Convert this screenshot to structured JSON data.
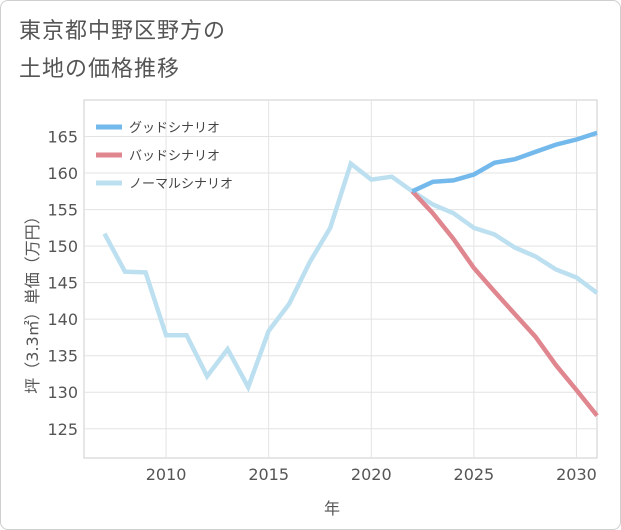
{
  "title": {
    "line1": "東京都中野区野方の",
    "line2": "土地の価格推移"
  },
  "chart_data": {
    "type": "line",
    "title": "東京都中野区野方の土地の価格推移",
    "xlabel": "年",
    "ylabel": "坪（3.3㎡）単価（万円）",
    "xlim": [
      2006,
      2031
    ],
    "ylim": [
      121,
      170
    ],
    "x_ticks": [
      2010,
      2015,
      2020,
      2025,
      2030
    ],
    "y_ticks": [
      125,
      130,
      135,
      140,
      145,
      150,
      155,
      160,
      165
    ],
    "grid": true,
    "legend_position": "top-left",
    "series": [
      {
        "name": "グッドシナリオ",
        "color": "#74b9ec",
        "points": [
          [
            2022,
            157.5
          ],
          [
            2023,
            158.8
          ],
          [
            2024,
            159.0
          ],
          [
            2025,
            159.8
          ],
          [
            2026,
            161.4
          ],
          [
            2027,
            161.9
          ],
          [
            2028,
            162.9
          ],
          [
            2029,
            163.9
          ],
          [
            2030,
            164.6
          ],
          [
            2031,
            165.5
          ]
        ]
      },
      {
        "name": "バッドシナリオ",
        "color": "#e0868f",
        "points": [
          [
            2022,
            157.5
          ],
          [
            2023,
            154.5
          ],
          [
            2024,
            151.0
          ],
          [
            2025,
            147.0
          ],
          [
            2026,
            143.8
          ],
          [
            2027,
            140.7
          ],
          [
            2028,
            137.6
          ],
          [
            2029,
            133.7
          ],
          [
            2030,
            130.3
          ],
          [
            2031,
            126.8
          ]
        ]
      },
      {
        "name": "ノーマルシナリオ",
        "color": "#bde0f1",
        "points": [
          [
            2007,
            151.7
          ],
          [
            2008,
            146.5
          ],
          [
            2009,
            146.4
          ],
          [
            2010,
            137.8
          ],
          [
            2011,
            137.8
          ],
          [
            2012,
            132.2
          ],
          [
            2013,
            135.9
          ],
          [
            2014,
            130.7
          ],
          [
            2015,
            138.4
          ],
          [
            2016,
            142.1
          ],
          [
            2017,
            147.8
          ],
          [
            2018,
            152.5
          ],
          [
            2019,
            161.3
          ],
          [
            2020,
            159.1
          ],
          [
            2021,
            159.5
          ],
          [
            2022,
            157.5
          ],
          [
            2023,
            155.7
          ],
          [
            2024,
            154.5
          ],
          [
            2025,
            152.5
          ],
          [
            2026,
            151.6
          ],
          [
            2027,
            149.8
          ],
          [
            2028,
            148.6
          ],
          [
            2029,
            146.8
          ],
          [
            2030,
            145.7
          ],
          [
            2031,
            143.6
          ]
        ]
      }
    ]
  }
}
